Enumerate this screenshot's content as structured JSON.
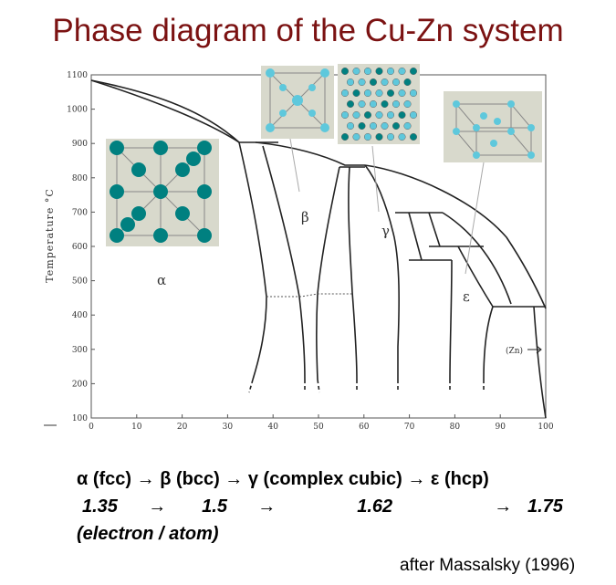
{
  "title": "Phase diagram of the Cu-Zn system",
  "diagram": {
    "y_axis_label": "Temperature °C",
    "y_ticks": [
      "1100",
      "1000",
      "900",
      "800",
      "700",
      "600",
      "500",
      "400",
      "300",
      "200",
      "100"
    ],
    "x_ticks": [
      "0",
      "10",
      "20",
      "30",
      "40",
      "50",
      "60",
      "70",
      "80",
      "90",
      "100"
    ],
    "phase_labels": {
      "alpha": "α",
      "beta": "β",
      "gamma": "γ",
      "epsilon": "ε",
      "zn": "(Zn)"
    }
  },
  "sequence": {
    "line1": "α (fcc) → β (bcc) → γ (complex cubic) → ε (hcp)",
    "line2": "1.35      →       1.5      →                1.62                    →   1.75",
    "line3": "(electron / atom)"
  },
  "credit": "after Massalsky (1996)",
  "colors": {
    "title": "#7b1212",
    "atom": "#008080",
    "atom_light": "#5ec8dc",
    "panel": "#d8d9cc"
  }
}
